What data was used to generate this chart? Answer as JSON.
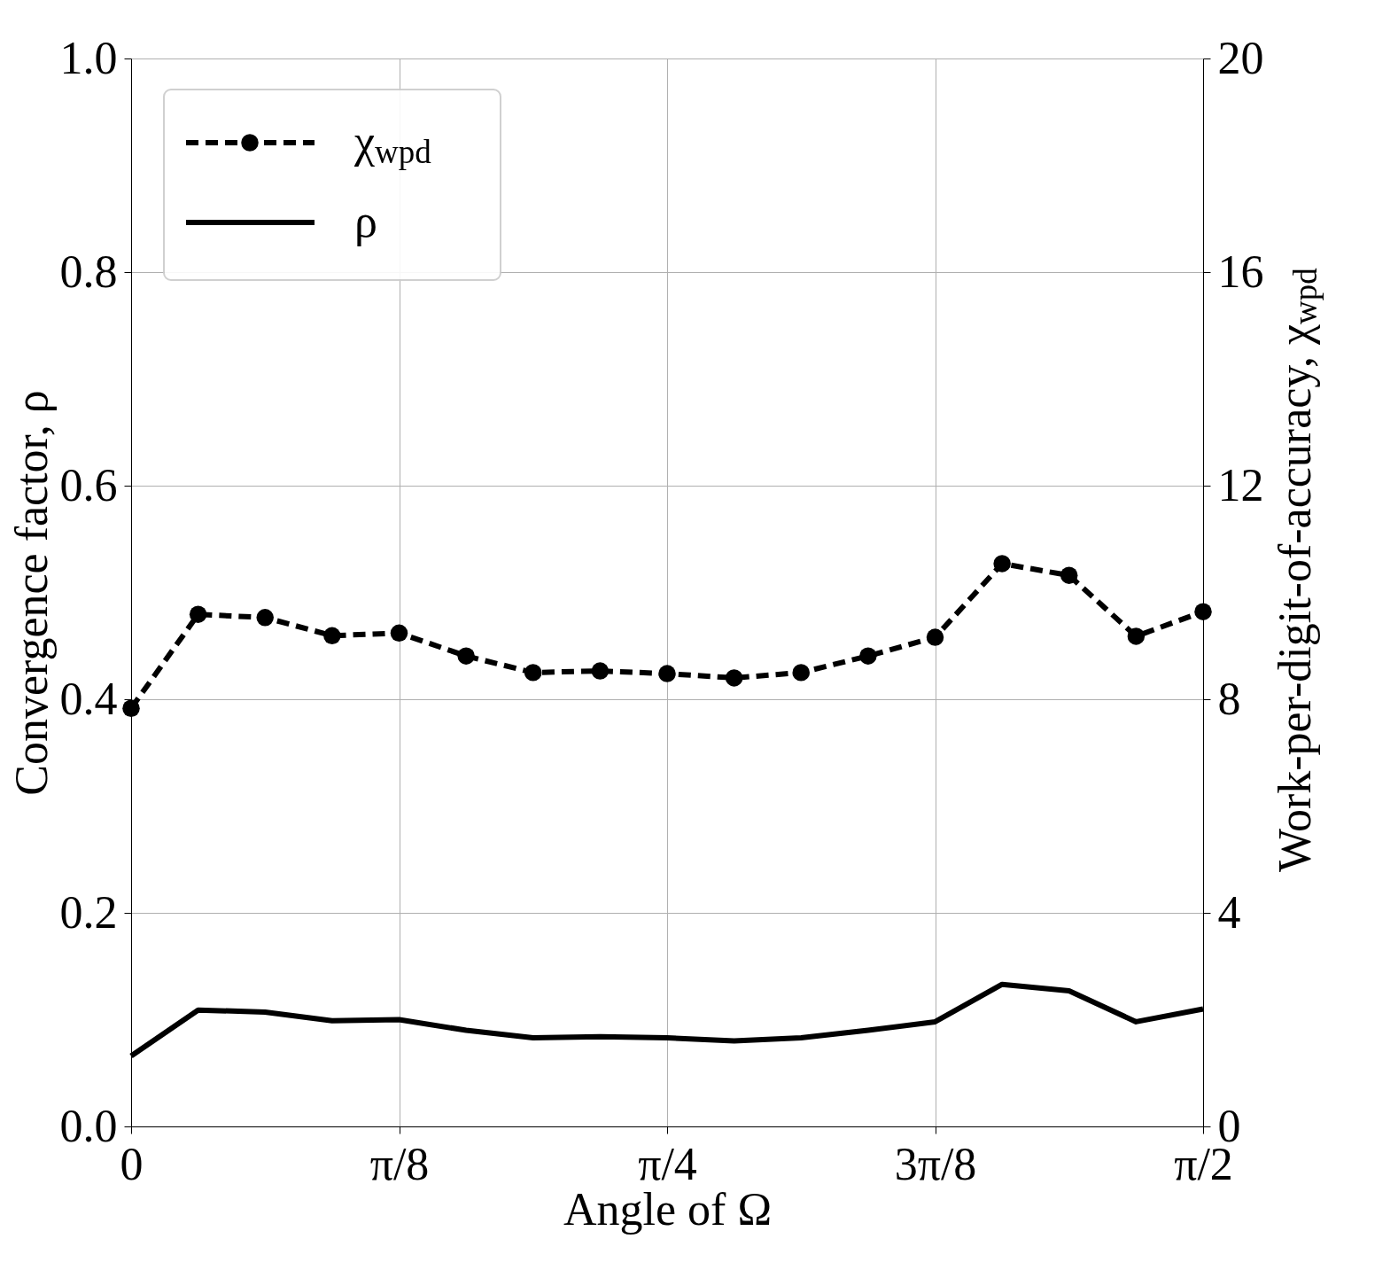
{
  "chart_data": {
    "type": "line",
    "xlabel": "Angle of Ω",
    "ylabel": "Convergence factor, ρ",
    "y2label": "Work-per-digit-of-accuracy, χ$_{wpd}$",
    "x": [
      0,
      0.0982,
      0.1963,
      0.2945,
      0.3927,
      0.4909,
      0.589,
      0.6872,
      0.7854,
      0.8836,
      0.9817,
      1.0799,
      1.1781,
      1.2763,
      1.3744,
      1.4726,
      1.5708
    ],
    "xlim": [
      0,
      1.5708
    ],
    "xticks": [
      {
        "value": 0,
        "label": "0"
      },
      {
        "value": 0.3927,
        "label": "π/8"
      },
      {
        "value": 0.7854,
        "label": "π/4"
      },
      {
        "value": 1.1781,
        "label": "3π/8"
      },
      {
        "value": 1.5708,
        "label": "π/2"
      }
    ],
    "ylim": [
      0,
      1
    ],
    "yticks": [
      {
        "value": 0,
        "label": "0.0"
      },
      {
        "value": 0.2,
        "label": "0.2"
      },
      {
        "value": 0.4,
        "label": "0.4"
      },
      {
        "value": 0.6,
        "label": "0.6"
      },
      {
        "value": 0.8,
        "label": "0.8"
      },
      {
        "value": 1,
        "label": "1.0"
      }
    ],
    "y2lim": [
      0,
      20
    ],
    "y2ticks": [
      0,
      4,
      8,
      12,
      16,
      20
    ],
    "series": [
      {
        "name": "χ$_{wpd}$",
        "color": "#000000",
        "axis": "y2",
        "marker": "circle",
        "line_style": "dashed",
        "values": [
          7.83,
          9.59,
          9.53,
          9.19,
          9.24,
          8.81,
          8.5,
          8.53,
          8.48,
          8.4,
          8.5,
          8.81,
          9.16,
          10.54,
          10.32,
          9.18,
          9.64
        ]
      },
      {
        "name": "ρ",
        "color": "#000000",
        "axis": "y",
        "marker": "none",
        "line_style": "solid",
        "values": [
          0.066,
          0.109,
          0.107,
          0.099,
          0.1,
          0.09,
          0.083,
          0.084,
          0.083,
          0.08,
          0.083,
          0.09,
          0.098,
          0.133,
          0.127,
          0.098,
          0.11
        ]
      }
    ],
    "grid": true,
    "legend": "top left"
  }
}
